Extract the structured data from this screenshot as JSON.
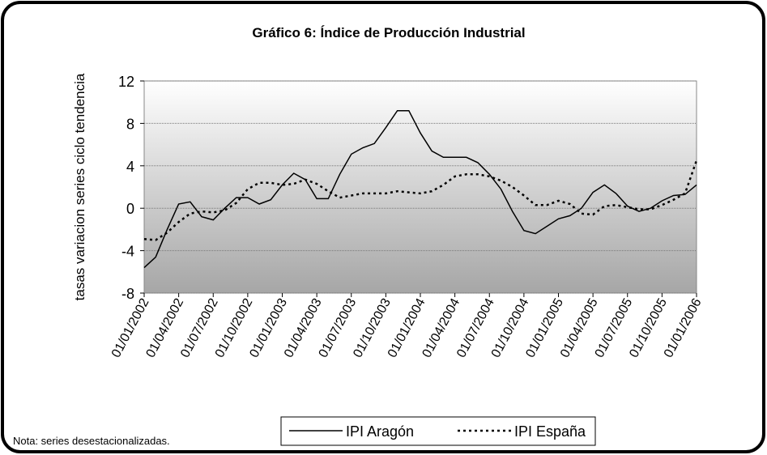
{
  "chart_data": {
    "type": "line",
    "title": "Gráfico 6: Índice de Producción Industrial",
    "y_label": "tasas variacion series ciclo tendencia",
    "note": "Nota: series desestacionalizadas.",
    "categories": [
      "01/01/2002",
      null,
      null,
      "01/04/2002",
      null,
      null,
      "01/07/2002",
      null,
      null,
      "01/10/2002",
      null,
      null,
      "01/01/2003",
      null,
      null,
      "01/04/2003",
      null,
      null,
      "01/07/2003",
      null,
      null,
      "01/10/2003",
      null,
      null,
      "01/01/2004",
      null,
      null,
      "01/04/2004",
      null,
      null,
      "01/07/2004",
      null,
      null,
      "01/10/2004",
      null,
      null,
      "01/01/2005",
      null,
      null,
      "01/04/2005",
      null,
      null,
      "01/07/2005",
      null,
      null,
      "01/10/2005",
      null,
      null,
      "01/01/2006"
    ],
    "series": [
      {
        "name": "IPI Aragón",
        "color": "#000000",
        "dash": "none",
        "values": [
          -5.6,
          -4.6,
          -2,
          0.4,
          0.6,
          -0.8,
          -1.1,
          0,
          1,
          1,
          0.4,
          0.8,
          2.2,
          3.3,
          2.7,
          0.9,
          0.9,
          3.2,
          5.1,
          5.7,
          6.1,
          7.6,
          9.2,
          9.2,
          7.1,
          5.4,
          4.8,
          4.8,
          4.8,
          4.3,
          3.2,
          1.8,
          -0.3,
          -2.1,
          -2.4,
          -1.7,
          -1,
          -0.7,
          0,
          1.5,
          2.2,
          1.4,
          0.2,
          -0.3,
          0,
          0.7,
          1.2,
          1.3,
          2.2
        ]
      },
      {
        "name": "IPI España",
        "color": "#000000",
        "dash": "3 4",
        "values": [
          -2.9,
          -3,
          -2.3,
          -1.3,
          -0.5,
          -0.3,
          -0.4,
          -0.2,
          0.5,
          1.8,
          2.4,
          2.4,
          2.2,
          2.3,
          2.7,
          2.3,
          1.6,
          1,
          1.2,
          1.4,
          1.4,
          1.4,
          1.6,
          1.5,
          1.4,
          1.6,
          2.2,
          3,
          3.2,
          3.2,
          3,
          2.6,
          2,
          1.2,
          0.3,
          0.3,
          0.7,
          0.4,
          -0.5,
          -0.6,
          0.2,
          0.3,
          0.1,
          -0.1,
          -0.1,
          0.3,
          0.8,
          1.4,
          4.5
        ]
      }
    ],
    "ylim": [
      -8,
      12
    ],
    "yticks": [
      -8,
      -4,
      0,
      4,
      8,
      12
    ],
    "grid": true
  }
}
